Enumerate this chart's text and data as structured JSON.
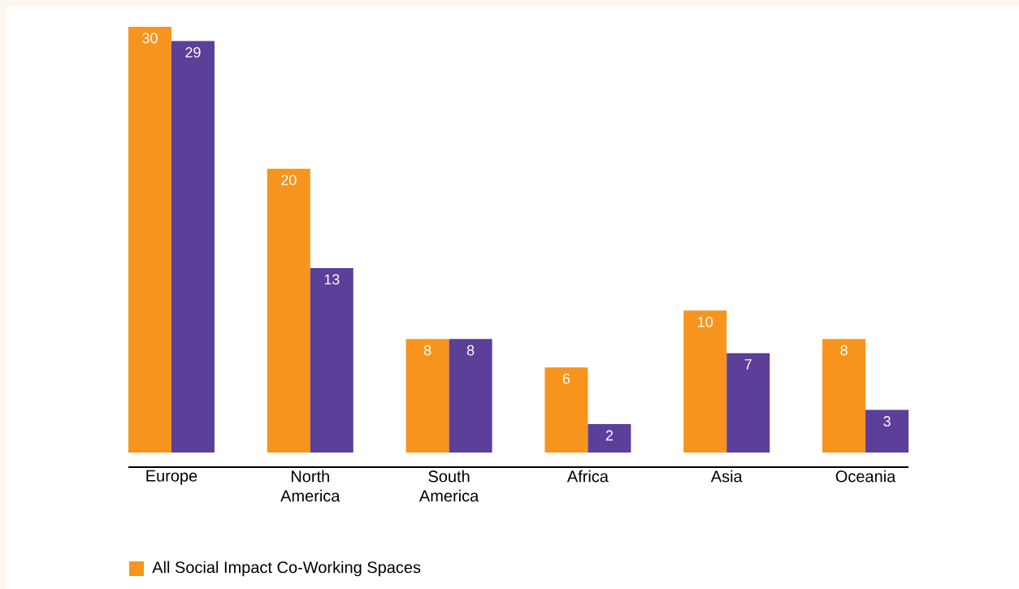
{
  "chart_data": {
    "type": "bar",
    "categories": [
      "Europe",
      "North America",
      "South America",
      "Africa",
      "Asia",
      "Oceania"
    ],
    "series": [
      {
        "name": "All Social Impact Co-Working Spaces",
        "color": "#f7941d",
        "values": [
          30,
          20,
          8,
          6,
          10,
          8
        ]
      },
      {
        "color": "#5b3f98",
        "values": [
          29,
          13,
          8,
          2,
          7,
          3
        ]
      }
    ],
    "data_labels": true,
    "legend": "bottom left"
  }
}
